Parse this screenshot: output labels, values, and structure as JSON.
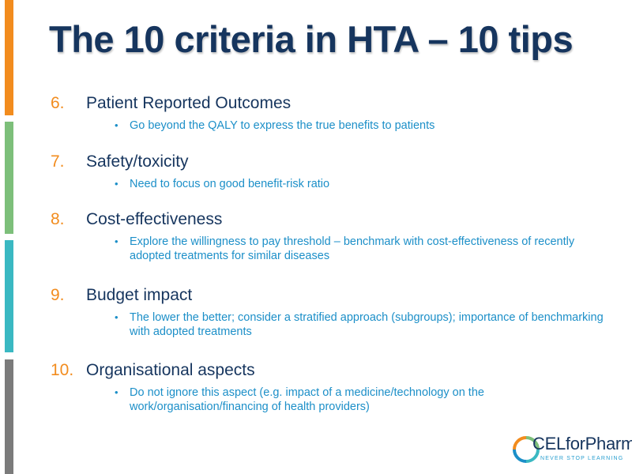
{
  "title": "The 10 criteria in HTA – 10 tips",
  "items": [
    {
      "number": "6.",
      "heading": "Patient Reported Outcomes",
      "bullet": "Go beyond the QALY to express the true benefits to patients"
    },
    {
      "number": "7.",
      "heading": "Safety/toxicity",
      "bullet": "Need to focus on good benefit-risk ratio"
    },
    {
      "number": "8.",
      "heading": "Cost-effectiveness",
      "bullet": "Explore the willingness to pay threshold – benchmark with cost-effectiveness of recently adopted treatments for similar diseases"
    },
    {
      "number": "9.",
      "heading": "Budget impact",
      "bullet": "The lower the better; consider a stratified approach (subgroups); importance of benchmarking with adopted treatments"
    },
    {
      "number": "10.",
      "heading": "Organisational aspects",
      "bullet": "Do not ignore this aspect (e.g. impact of a medicine/technology  on the work/organisation/financing of health providers)"
    }
  ],
  "bullet_symbol": "•",
  "logo": {
    "name": "CELforPharma",
    "tagline": "NEVER STOP LEARNING"
  },
  "colors": {
    "accent_orange": "#f28c1e",
    "accent_green": "#7dbf7a",
    "accent_teal": "#3ab8c2",
    "accent_gray": "#7b7b7b",
    "title_navy": "#16355e",
    "bullet_blue": "#1c8fc8"
  }
}
